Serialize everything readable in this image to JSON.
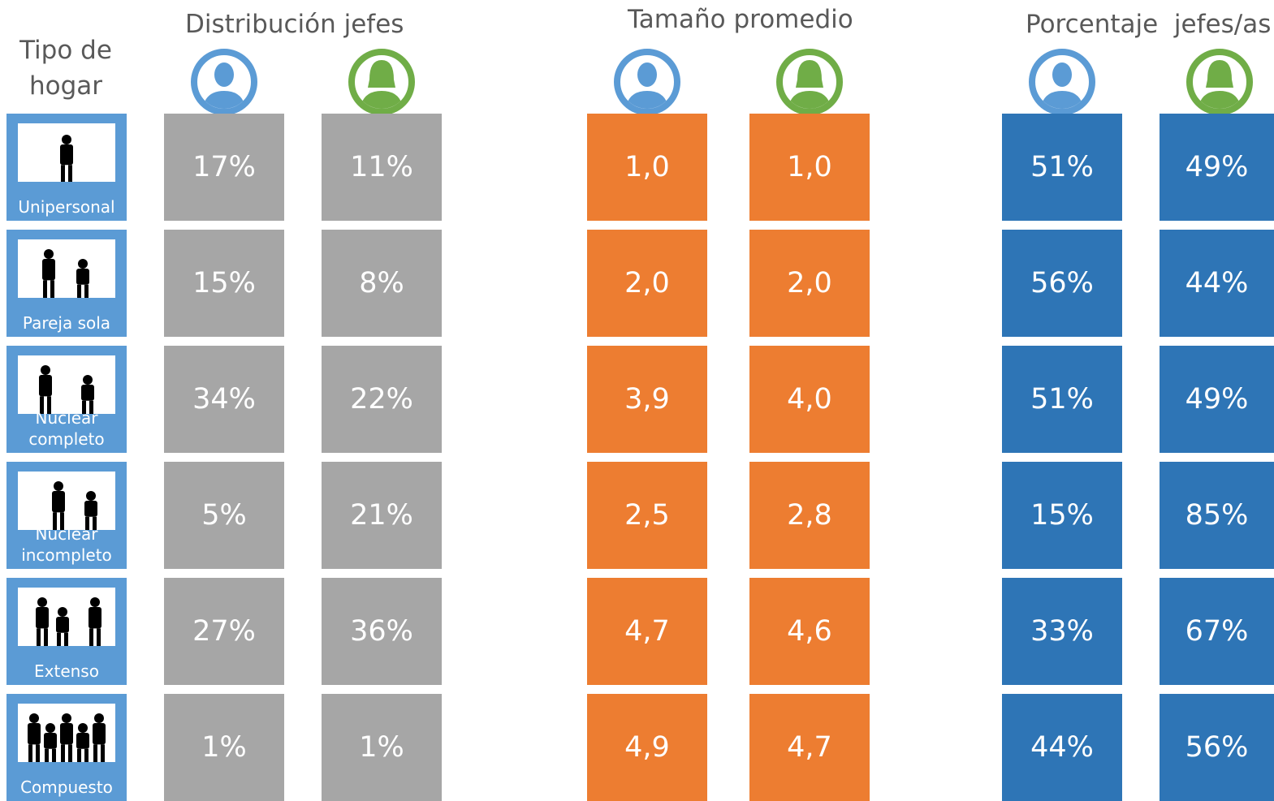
{
  "header": "Tipo de hogar",
  "rows": [
    "Unipersonal",
    "Pareja sola",
    "Nuclear completo",
    "Nuclear incompleto",
    "Extenso",
    "Compuesto"
  ],
  "sections": [
    {
      "title": "Distribución jefes",
      "values": [
        [
          "17%",
          "11%"
        ],
        [
          "15%",
          "8%"
        ],
        [
          "34%",
          "22%"
        ],
        [
          "5%",
          "21%"
        ],
        [
          "27%",
          "36%"
        ],
        [
          "1%",
          "1%"
        ]
      ]
    },
    {
      "title": "Tamaño promedio",
      "values": [
        [
          "1,0",
          "1,0"
        ],
        [
          "2,0",
          "2,0"
        ],
        [
          "3,9",
          "4,0"
        ],
        [
          "2,5",
          "2,8"
        ],
        [
          "4,7",
          "4,6"
        ],
        [
          "4,9",
          "4,7"
        ]
      ]
    },
    {
      "title": "Porcentaje  jefes/as",
      "values": [
        [
          "51%",
          "49%"
        ],
        [
          "56%",
          "44%"
        ],
        [
          "51%",
          "49%"
        ],
        [
          "15%",
          "85%"
        ],
        [
          "33%",
          "67%"
        ],
        [
          "44%",
          "56%"
        ]
      ]
    }
  ]
}
